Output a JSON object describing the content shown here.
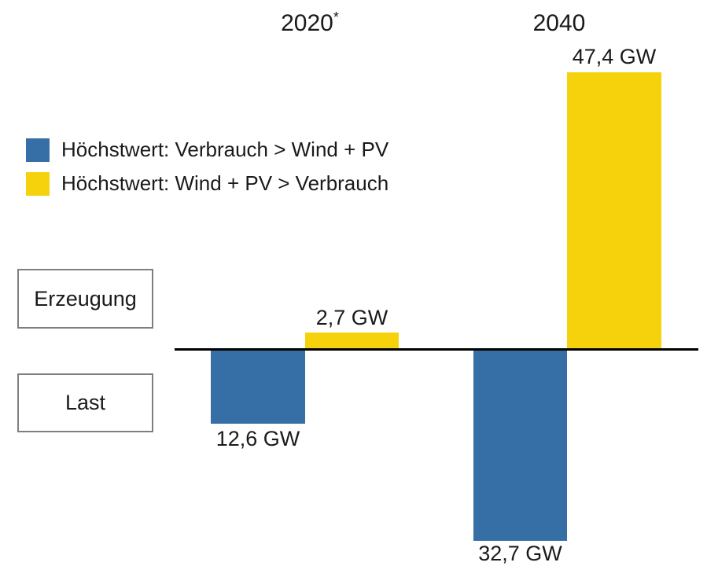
{
  "chart_data": {
    "type": "bar",
    "title": "",
    "unit": "GW",
    "categories": [
      "2020",
      "2040"
    ],
    "category_sups": [
      "*",
      ""
    ],
    "series": [
      {
        "name": "Höchstwert: Verbrauch > Wind + PV",
        "color": "#366fa5",
        "values": [
          -12.6,
          -32.7
        ],
        "labels": [
          "12,6 GW",
          "32,7 GW"
        ]
      },
      {
        "name": "Höchstwert: Wind + PV > Verbrauch",
        "color": "#f5d20c",
        "values": [
          2.7,
          47.4
        ],
        "labels": [
          "2,7 GW",
          "47,4 GW"
        ]
      }
    ],
    "row_labels": {
      "positive": "Erzeugung",
      "negative": "Last"
    },
    "baseline": 0,
    "ylim": [
      -35,
      50
    ],
    "grid": false,
    "legend_position": "upper-left",
    "axis_color": "#000000",
    "box_border_color": "#7f7f7f",
    "text_color": "#1a1a1a"
  }
}
